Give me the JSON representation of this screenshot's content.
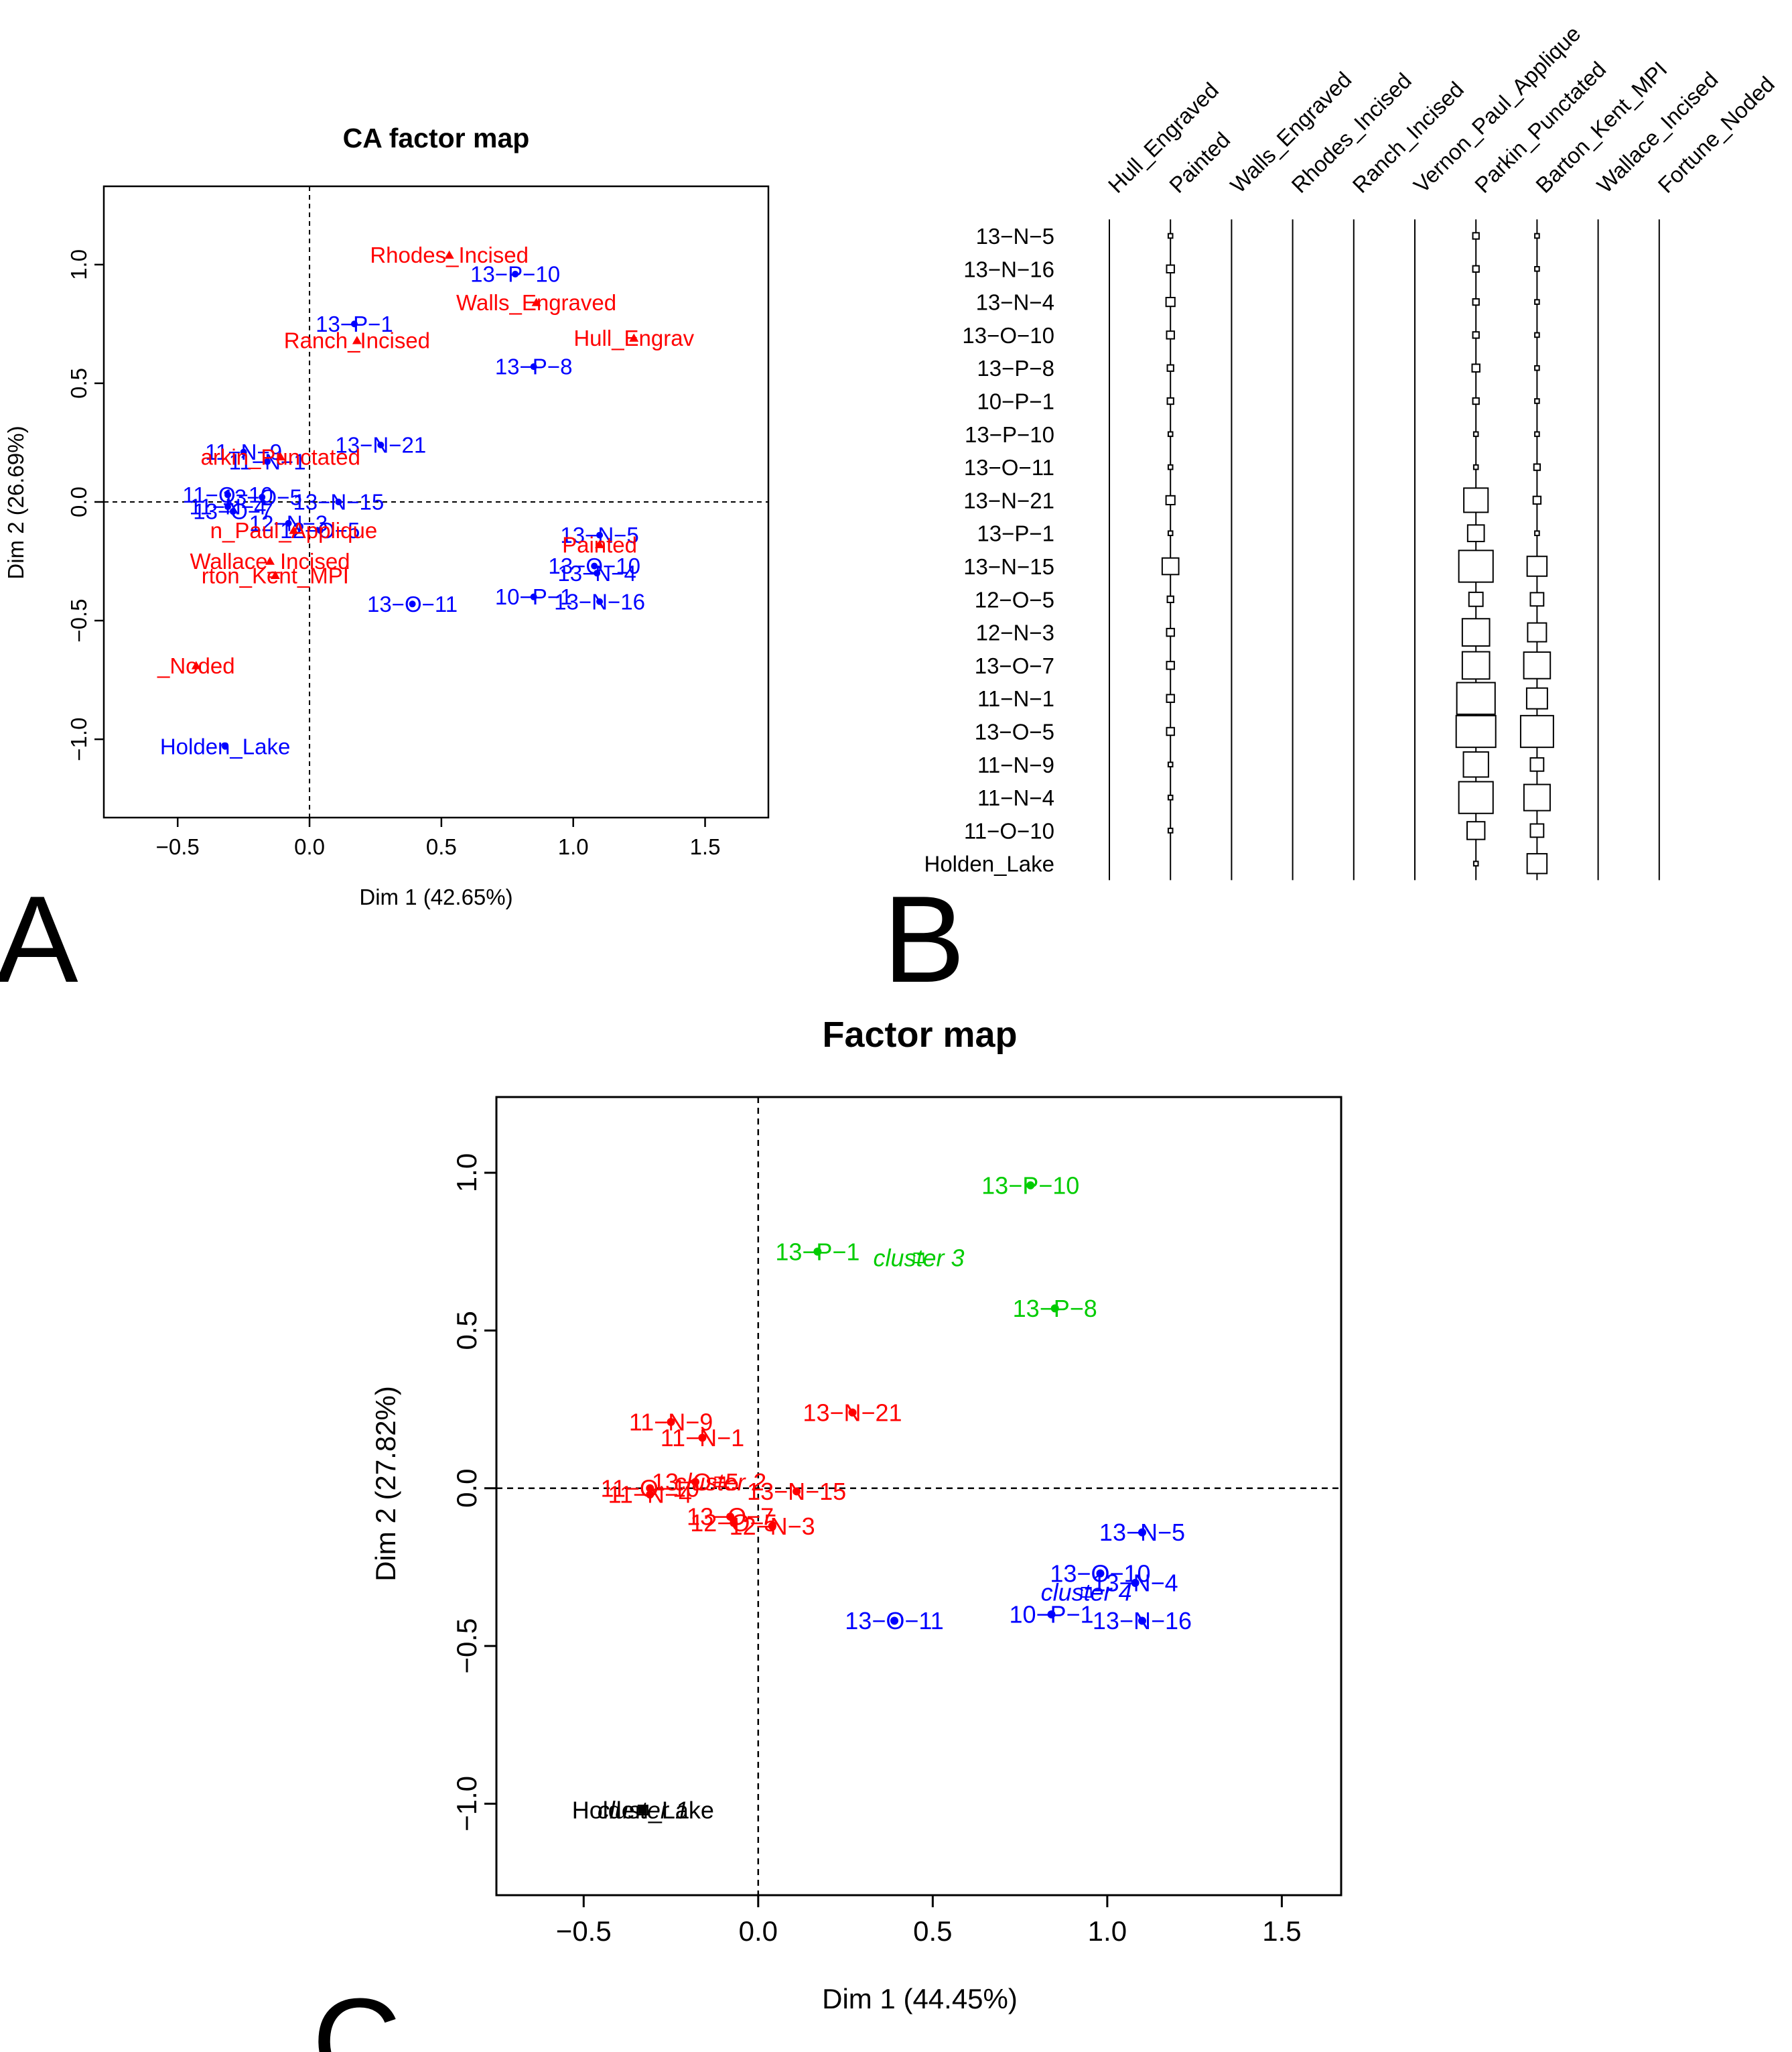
{
  "figure": {
    "panel_labels": [
      "A",
      "B",
      "C"
    ]
  },
  "chart_data": [
    {
      "panel": "A",
      "type": "scatter",
      "title": "CA factor map",
      "xlabel": "Dim 1 (42.65%)",
      "ylabel": "Dim 2 (26.69%)",
      "xlim": [
        -0.78,
        1.74
      ],
      "ylim": [
        -1.33,
        1.33
      ],
      "xticks": [
        -0.5,
        0.0,
        0.5,
        1.0,
        1.5
      ],
      "yticks": [
        -1.0,
        -0.5,
        0.0,
        0.5,
        1.0
      ],
      "xtick_labels": [
        "−0.5",
        "0.0",
        "0.5",
        "1.0",
        "1.5"
      ],
      "ytick_labels": [
        "−1.0",
        "−0.5",
        "0.0",
        "0.5",
        "1.0"
      ],
      "grid": false,
      "reference_lines": {
        "x": 0,
        "y": 0,
        "style": "dashed"
      },
      "colors": {
        "rows": "#0000ff",
        "columns": "#ff0000"
      },
      "series": [
        {
          "marker": "circle",
          "color": "#0000ff",
          "points": [
            {
              "label": "13−P−10",
              "x": 0.78,
              "y": 0.96
            },
            {
              "label": "13−P−1",
              "x": 0.17,
              "y": 0.75
            },
            {
              "label": "13−P−8",
              "x": 0.85,
              "y": 0.57
            },
            {
              "label": "11−N−9",
              "x": -0.25,
              "y": 0.21
            },
            {
              "label": "13−N−21",
              "x": 0.27,
              "y": 0.24
            },
            {
              "label": "11−N−1",
              "x": -0.16,
              "y": 0.17
            },
            {
              "label": "11−O−10",
              "x": -0.31,
              "y": 0.03
            },
            {
              "label": "13−O−5",
              "x": -0.18,
              "y": 0.02
            },
            {
              "label": "13−N−15",
              "x": 0.11,
              "y": 0.0
            },
            {
              "label": "11−N−4",
              "x": -0.31,
              "y": -0.02
            },
            {
              "label": "13−O−7",
              "x": -0.29,
              "y": -0.04
            },
            {
              "label": "12−N−3",
              "x": -0.08,
              "y": -0.09
            },
            {
              "label": "12−O−5",
              "x": 0.04,
              "y": -0.12
            },
            {
              "label": "13−N−5",
              "x": 1.1,
              "y": -0.14
            },
            {
              "label": "13−N−4",
              "x": 1.09,
              "y": -0.3
            },
            {
              "label": "13−O−10",
              "x": 1.08,
              "y": -0.27
            },
            {
              "label": "10−P−1",
              "x": 0.85,
              "y": -0.4
            },
            {
              "label": "13−N−16",
              "x": 1.1,
              "y": -0.42
            },
            {
              "label": "13−O−11",
              "x": 0.39,
              "y": -0.43
            },
            {
              "label": "Holden_Lake",
              "x": -0.32,
              "y": -1.03
            }
          ]
        },
        {
          "marker": "triangle",
          "color": "#ff0000",
          "points": [
            {
              "label": "Rhodes_Incised",
              "x": 0.53,
              "y": 1.04
            },
            {
              "label": "Walls_Engraved",
              "x": 0.86,
              "y": 0.84
            },
            {
              "label": "Hull_Engrav",
              "x": 1.23,
              "y": 0.69
            },
            {
              "label": "Ranch_Incised",
              "x": 0.18,
              "y": 0.68
            },
            {
              "label": "arkin_Punctated",
              "x": -0.11,
              "y": 0.19
            },
            {
              "label": "n_Paul_Applique",
              "x": -0.06,
              "y": -0.12
            },
            {
              "label": "Wallace_Incised",
              "x": -0.15,
              "y": -0.25
            },
            {
              "label": "rton_Kent_MPI",
              "x": -0.13,
              "y": -0.31
            },
            {
              "label": "Painted",
              "x": 1.1,
              "y": -0.18
            },
            {
              "label": "_Noded",
              "x": -0.43,
              "y": -0.69
            }
          ]
        }
      ]
    },
    {
      "panel": "B",
      "type": "table",
      "description": "contingency table plot",
      "columns": [
        "Hull_Engraved",
        "Painted",
        "Walls_Engraved",
        "Rhodes_Incised",
        "Ranch_Incised",
        "Vernon_Paul_Applique",
        "Parkin_Punctated",
        "Barton_Kent_MPI",
        "Wallace_Incised",
        "Fortune_Noded"
      ],
      "rows": [
        "13−N−5",
        "13−N−16",
        "13−N−4",
        "13−O−10",
        "13−P−8",
        "10−P−1",
        "13−P−10",
        "13−O−11",
        "13−N−21",
        "13−P−1",
        "13−N−15",
        "12−O−5",
        "12−N−3",
        "13−O−7",
        "11−N−1",
        "13−O−5",
        "11−N−9",
        "11−N−4",
        "11−O−10",
        "Holden_Lake"
      ],
      "values": [
        [
          0,
          1,
          0,
          0,
          0,
          0,
          2,
          1,
          0,
          0
        ],
        [
          0,
          3,
          0,
          0,
          0,
          0,
          2,
          1,
          0,
          0
        ],
        [
          0,
          4,
          0,
          0,
          0,
          0,
          2,
          1,
          0,
          0
        ],
        [
          0,
          3,
          0,
          0,
          0,
          0,
          2,
          1,
          0,
          0
        ],
        [
          0,
          2,
          0,
          0,
          0,
          0,
          3,
          1,
          0,
          0
        ],
        [
          0,
          2,
          0,
          0,
          0,
          0,
          2,
          1,
          0,
          0
        ],
        [
          0,
          1,
          0,
          0,
          0,
          0,
          1,
          1,
          0,
          0
        ],
        [
          0,
          1,
          0,
          0,
          0,
          0,
          1,
          2,
          0,
          0
        ],
        [
          0,
          4,
          0,
          0,
          0,
          0,
          30,
          3,
          0,
          0
        ],
        [
          0,
          1,
          0,
          0,
          0,
          0,
          14,
          1,
          0,
          0
        ],
        [
          0,
          14,
          0,
          0,
          0,
          0,
          60,
          20,
          0,
          0
        ],
        [
          0,
          2,
          0,
          0,
          0,
          0,
          10,
          9,
          0,
          0
        ],
        [
          0,
          3,
          0,
          0,
          0,
          0,
          38,
          18,
          0,
          0
        ],
        [
          0,
          3,
          0,
          0,
          0,
          0,
          38,
          36,
          0,
          0
        ],
        [
          0,
          3,
          0,
          0,
          0,
          0,
          75,
          22,
          0,
          0
        ],
        [
          0,
          3,
          0,
          0,
          0,
          0,
          80,
          55,
          0,
          0
        ],
        [
          0,
          1,
          0,
          0,
          0,
          0,
          32,
          9,
          0,
          0
        ],
        [
          0,
          1,
          0,
          0,
          0,
          0,
          60,
          35,
          0,
          0
        ],
        [
          0,
          1,
          0,
          0,
          0,
          0,
          16,
          9,
          0,
          0
        ],
        [
          0,
          0,
          0,
          0,
          0,
          0,
          1,
          20,
          0,
          0
        ]
      ]
    },
    {
      "panel": "C",
      "type": "scatter",
      "title": "Factor map",
      "xlabel": "Dim 1 (44.45%)",
      "ylabel": "Dim 2 (27.82%)",
      "xlim": [
        -0.75,
        1.67
      ],
      "ylim": [
        -1.29,
        1.24
      ],
      "xticks": [
        -0.5,
        0.0,
        0.5,
        1.0,
        1.5
      ],
      "yticks": [
        -1.0,
        -0.5,
        0.0,
        0.5,
        1.0
      ],
      "xtick_labels": [
        "−0.5",
        "0.0",
        "0.5",
        "1.0",
        "1.5"
      ],
      "ytick_labels": [
        "−1.0",
        "−0.5",
        "0.0",
        "0.5",
        "1.0"
      ],
      "grid": false,
      "reference_lines": {
        "x": 0,
        "y": 0,
        "style": "dashed"
      },
      "colors": {
        "cluster 1": "#000000",
        "cluster 2": "#ff0000",
        "cluster 3": "#00cc00",
        "cluster 4": "#0000ff"
      },
      "series": [
        {
          "name": "cluster 1",
          "color": "#000000",
          "marker": "square",
          "points": [
            {
              "label": "Holden_Lake",
              "x": -0.33,
              "y": -1.02
            }
          ],
          "center": {
            "label": "cluster 1",
            "x": -0.33,
            "y": -1.02
          }
        },
        {
          "name": "cluster 2",
          "color": "#ff0000",
          "marker": "circle",
          "points": [
            {
              "label": "11−N−9",
              "x": -0.25,
              "y": 0.21
            },
            {
              "label": "13−N−21",
              "x": 0.27,
              "y": 0.24
            },
            {
              "label": "11−N−1",
              "x": -0.16,
              "y": 0.16
            },
            {
              "label": "11−O−10",
              "x": -0.31,
              "y": 0.0
            },
            {
              "label": "13−O−5",
              "x": -0.18,
              "y": 0.02
            },
            {
              "label": "13−N−15",
              "x": 0.11,
              "y": -0.01
            },
            {
              "label": "11−N−4",
              "x": -0.31,
              "y": -0.02
            },
            {
              "label": "13−O−7",
              "x": -0.08,
              "y": -0.09
            },
            {
              "label": "12−N−3",
              "x": 0.04,
              "y": -0.12
            },
            {
              "label": "12−O−5",
              "x": -0.07,
              "y": -0.11
            }
          ],
          "center": {
            "label": "cluster 2",
            "x": -0.11,
            "y": 0.02
          }
        },
        {
          "name": "cluster 3",
          "color": "#00cc00",
          "marker": "circle",
          "points": [
            {
              "label": "13−P−10",
              "x": 0.78,
              "y": 0.96
            },
            {
              "label": "13−P−1",
              "x": 0.17,
              "y": 0.75
            },
            {
              "label": "13−P−8",
              "x": 0.85,
              "y": 0.57
            }
          ],
          "center": {
            "label": "cluster 3",
            "x": 0.46,
            "y": 0.73
          }
        },
        {
          "name": "cluster 4",
          "color": "#0000ff",
          "marker": "circle",
          "points": [
            {
              "label": "13−N−5",
              "x": 1.1,
              "y": -0.14
            },
            {
              "label": "13−O−10",
              "x": 0.98,
              "y": -0.27
            },
            {
              "label": "13−N−4",
              "x": 1.08,
              "y": -0.3
            },
            {
              "label": "10−P−1",
              "x": 0.84,
              "y": -0.4
            },
            {
              "label": "13−N−16",
              "x": 1.1,
              "y": -0.42
            },
            {
              "label": "13−O−11",
              "x": 0.39,
              "y": -0.42
            }
          ],
          "center": {
            "label": "cluster 4",
            "x": 0.94,
            "y": -0.33
          }
        }
      ]
    }
  ]
}
